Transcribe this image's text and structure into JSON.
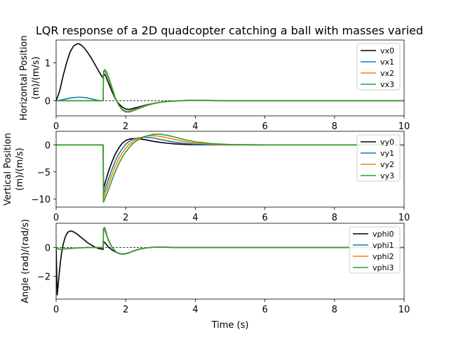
{
  "chart_data": [
    {
      "type": "line",
      "title": "LQR response of a 2D quadcopter catching a ball with masses varied",
      "xlabel": "",
      "ylabel": [
        "Horizontal Position",
        "(m)/(m/s)"
      ],
      "xlim": [
        0,
        10
      ],
      "ylim": [
        -0.4,
        1.6
      ],
      "xticks": [
        0,
        2,
        4,
        6,
        8,
        10
      ],
      "yticks": [
        0,
        1
      ],
      "zero_line": true,
      "legend_position": "upper right",
      "series": [
        {
          "name": "vx0",
          "color": "#000000",
          "x": [
            0,
            0.1,
            0.2,
            0.3,
            0.4,
            0.5,
            0.6,
            0.65,
            0.7,
            0.8,
            0.9,
            1.0,
            1.1,
            1.2,
            1.3,
            1.35,
            1.36,
            1.4,
            1.45,
            1.5,
            1.6,
            1.7,
            1.8,
            1.9,
            2.0,
            2.1,
            2.2,
            2.4,
            2.6,
            2.8,
            3.0,
            3.2,
            3.4,
            3.6,
            3.8,
            4.0,
            5.0,
            6.0,
            8.0,
            10.0
          ],
          "y": [
            0,
            0.25,
            0.65,
            1.0,
            1.28,
            1.44,
            1.5,
            1.5,
            1.48,
            1.4,
            1.28,
            1.14,
            0.98,
            0.82,
            0.66,
            0.6,
            0.66,
            0.7,
            0.6,
            0.48,
            0.25,
            0.05,
            -0.08,
            -0.17,
            -0.22,
            -0.23,
            -0.21,
            -0.16,
            -0.11,
            -0.07,
            -0.04,
            -0.02,
            -0.01,
            0.0,
            0.005,
            0.005,
            0,
            0,
            0,
            0
          ]
        },
        {
          "name": "vx1",
          "color": "#1f77b4",
          "x": [
            0,
            0.1,
            0.2,
            0.3,
            0.4,
            0.5,
            0.6,
            0.7,
            0.8,
            0.9,
            1.0,
            1.1,
            1.2,
            1.3,
            1.35,
            1.36,
            1.38,
            1.4,
            1.45,
            1.5,
            1.6,
            1.7,
            1.8,
            1.9,
            2.0,
            2.1,
            2.2,
            2.4,
            2.6,
            2.8,
            3.0,
            3.2,
            3.4,
            3.6,
            3.8,
            4.0,
            5.0,
            6.0,
            8.0,
            10.0
          ],
          "y": [
            0,
            0.01,
            0.03,
            0.05,
            0.07,
            0.08,
            0.09,
            0.09,
            0.085,
            0.07,
            0.05,
            0.03,
            0.01,
            0.0,
            0.0,
            0.72,
            0.76,
            0.78,
            0.72,
            0.6,
            0.32,
            0.06,
            -0.12,
            -0.23,
            -0.28,
            -0.28,
            -0.25,
            -0.18,
            -0.12,
            -0.07,
            -0.04,
            -0.02,
            -0.01,
            0.0,
            0.005,
            0.005,
            0,
            0,
            0,
            0
          ]
        },
        {
          "name": "vx2",
          "color": "#ff7f0e",
          "x": [
            0,
            1.35,
            1.36,
            1.38,
            1.4,
            1.45,
            1.5,
            1.6,
            1.7,
            1.8,
            1.9,
            2.0,
            2.1,
            2.2,
            2.4,
            2.6,
            2.8,
            3.0,
            3.2,
            3.4,
            3.6,
            3.8,
            4.0,
            5.0,
            6.0,
            8.0,
            10.0
          ],
          "y": [
            0,
            0,
            0.74,
            0.78,
            0.8,
            0.74,
            0.62,
            0.34,
            0.07,
            -0.12,
            -0.24,
            -0.29,
            -0.29,
            -0.26,
            -0.19,
            -0.12,
            -0.07,
            -0.04,
            -0.02,
            -0.01,
            0.0,
            0.005,
            0.005,
            0,
            0,
            0,
            0
          ]
        },
        {
          "name": "vx3",
          "color": "#2ca02c",
          "x": [
            0,
            1.35,
            1.36,
            1.38,
            1.4,
            1.45,
            1.5,
            1.6,
            1.7,
            1.8,
            1.9,
            2.0,
            2.1,
            2.2,
            2.4,
            2.6,
            2.8,
            3.0,
            3.2,
            3.4,
            3.6,
            3.8,
            4.0,
            5.0,
            6.0,
            8.0,
            10.0
          ],
          "y": [
            0,
            0,
            0.76,
            0.8,
            0.82,
            0.76,
            0.64,
            0.36,
            0.08,
            -0.11,
            -0.24,
            -0.3,
            -0.3,
            -0.27,
            -0.2,
            -0.13,
            -0.08,
            -0.04,
            -0.02,
            -0.01,
            0.0,
            0.005,
            0.005,
            0,
            0,
            0,
            0
          ]
        }
      ]
    },
    {
      "type": "line",
      "title": "",
      "xlabel": "",
      "ylabel": [
        "Vertical Position",
        "(m)/(m/s)"
      ],
      "xlim": [
        0,
        10
      ],
      "ylim": [
        -11.5,
        2.5
      ],
      "xticks": [
        0,
        2,
        4,
        6,
        8,
        10
      ],
      "yticks": [
        0,
        -5,
        -10
      ],
      "zero_line": false,
      "legend_position": "upper right",
      "series": [
        {
          "name": "vy0",
          "color": "#000000",
          "x": [
            0,
            1.35,
            1.36,
            1.4,
            1.5,
            1.6,
            1.7,
            1.8,
            1.9,
            2.0,
            2.1,
            2.2,
            2.3,
            2.4,
            2.6,
            2.8,
            3.0,
            3.2,
            3.4,
            3.6,
            3.8,
            4.0,
            4.5,
            5.0,
            6.0,
            8.0,
            10.0
          ],
          "y": [
            0,
            0,
            -8.2,
            -7.2,
            -5.0,
            -3.2,
            -1.7,
            -0.6,
            0.3,
            0.8,
            1.05,
            1.15,
            1.15,
            1.1,
            0.9,
            0.65,
            0.45,
            0.3,
            0.18,
            0.1,
            0.05,
            0.02,
            0.0,
            0.0,
            0,
            0,
            0
          ]
        },
        {
          "name": "vy1",
          "color": "#1f77b4",
          "x": [
            0,
            1.35,
            1.36,
            1.4,
            1.5,
            1.6,
            1.7,
            1.8,
            1.9,
            2.0,
            2.1,
            2.2,
            2.3,
            2.4,
            2.6,
            2.8,
            3.0,
            3.2,
            3.4,
            3.6,
            3.8,
            4.0,
            4.5,
            5.0,
            6.0,
            8.0,
            10.0
          ],
          "y": [
            0,
            0,
            -9.2,
            -8.4,
            -6.4,
            -4.6,
            -3.0,
            -1.7,
            -0.7,
            0.1,
            0.65,
            1.0,
            1.2,
            1.35,
            1.4,
            1.25,
            1.0,
            0.72,
            0.5,
            0.32,
            0.2,
            0.12,
            0.03,
            0.0,
            0,
            0,
            0
          ]
        },
        {
          "name": "vy2",
          "color": "#ff7f0e",
          "x": [
            0,
            1.35,
            1.36,
            1.4,
            1.5,
            1.6,
            1.7,
            1.8,
            1.9,
            2.0,
            2.1,
            2.2,
            2.3,
            2.4,
            2.6,
            2.8,
            3.0,
            3.2,
            3.4,
            3.6,
            3.8,
            4.0,
            4.5,
            5.0,
            6.0,
            8.0,
            10.0
          ],
          "y": [
            0,
            0,
            -9.9,
            -9.2,
            -7.4,
            -5.6,
            -4.0,
            -2.6,
            -1.5,
            -0.6,
            0.1,
            0.6,
            1.0,
            1.3,
            1.65,
            1.7,
            1.55,
            1.3,
            1.0,
            0.72,
            0.5,
            0.32,
            0.1,
            0.03,
            0,
            0,
            0
          ]
        },
        {
          "name": "vy3",
          "color": "#2ca02c",
          "x": [
            0,
            1.35,
            1.36,
            1.4,
            1.5,
            1.6,
            1.7,
            1.8,
            1.9,
            2.0,
            2.1,
            2.2,
            2.3,
            2.4,
            2.6,
            2.8,
            3.0,
            3.2,
            3.4,
            3.6,
            3.8,
            4.0,
            4.5,
            5.0,
            6.0,
            8.0,
            10.0
          ],
          "y": [
            0,
            0,
            -10.6,
            -10.0,
            -8.4,
            -6.6,
            -5.0,
            -3.5,
            -2.3,
            -1.3,
            -0.5,
            0.2,
            0.7,
            1.1,
            1.65,
            1.95,
            1.95,
            1.75,
            1.45,
            1.1,
            0.8,
            0.55,
            0.2,
            0.06,
            0,
            0,
            0
          ]
        }
      ]
    },
    {
      "type": "line",
      "title": "",
      "xlabel": "Time (s)",
      "ylabel": [
        "Angle (rad)/(rad/s)"
      ],
      "xlim": [
        0,
        10
      ],
      "ylim": [
        -3.6,
        1.7
      ],
      "xticks": [
        0,
        2,
        4,
        6,
        8,
        10
      ],
      "yticks": [
        0,
        -2
      ],
      "zero_line": true,
      "legend_position": "upper right",
      "series": [
        {
          "name": "vphi0",
          "color": "#000000",
          "x": [
            0,
            0.03,
            0.06,
            0.1,
            0.15,
            0.2,
            0.25,
            0.3,
            0.35,
            0.4,
            0.45,
            0.5,
            0.6,
            0.7,
            0.8,
            0.9,
            1.0,
            1.1,
            1.2,
            1.3,
            1.35,
            1.36,
            1.4,
            1.45,
            1.5,
            1.6,
            1.7,
            1.8,
            1.9,
            2.0,
            2.1,
            2.2,
            2.4,
            2.6,
            2.8,
            3.0,
            3.2,
            3.5,
            4.0,
            5.0,
            6.0,
            8.0,
            10.0
          ],
          "y": [
            0,
            -3.3,
            -2.6,
            -1.5,
            -0.5,
            0.2,
            0.65,
            0.95,
            1.1,
            1.15,
            1.15,
            1.1,
            0.95,
            0.75,
            0.55,
            0.35,
            0.2,
            0.05,
            -0.05,
            -0.1,
            -0.12,
            0.4,
            0.35,
            0.2,
            0.05,
            -0.15,
            -0.3,
            -0.4,
            -0.45,
            -0.42,
            -0.35,
            -0.25,
            -0.1,
            -0.02,
            0.02,
            0.03,
            0.02,
            0.0,
            0,
            0,
            0,
            0,
            0
          ]
        },
        {
          "name": "vphi1",
          "color": "#1f77b4",
          "x": [
            0,
            0.1,
            0.3,
            0.5,
            0.7,
            0.9,
            1.1,
            1.3,
            1.35,
            1.36,
            1.4,
            1.45,
            1.5,
            1.6,
            1.7,
            1.8,
            1.9,
            2.0,
            2.1,
            2.2,
            2.4,
            2.6,
            2.8,
            3.0,
            3.2,
            3.5,
            4.0,
            5.0,
            6.0,
            8.0,
            10.0
          ],
          "y": [
            0,
            -0.12,
            -0.08,
            -0.04,
            -0.02,
            0.0,
            0.0,
            0.0,
            0.0,
            1.2,
            1.25,
            0.85,
            0.5,
            0.05,
            -0.25,
            -0.4,
            -0.45,
            -0.42,
            -0.35,
            -0.25,
            -0.1,
            -0.02,
            0.02,
            0.03,
            0.02,
            0.0,
            0,
            0,
            0,
            0,
            0
          ]
        },
        {
          "name": "vphi2",
          "color": "#ff7f0e",
          "x": [
            0,
            0.1,
            0.3,
            0.5,
            0.7,
            0.9,
            1.1,
            1.3,
            1.35,
            1.36,
            1.4,
            1.45,
            1.5,
            1.6,
            1.7,
            1.8,
            1.9,
            2.0,
            2.1,
            2.2,
            2.4,
            2.6,
            2.8,
            3.0,
            3.2,
            3.5,
            4.0,
            5.0,
            6.0,
            8.0,
            10.0
          ],
          "y": [
            0,
            -0.12,
            -0.08,
            -0.04,
            -0.02,
            0.0,
            0.0,
            0.0,
            0.0,
            1.3,
            1.35,
            0.9,
            0.52,
            0.05,
            -0.26,
            -0.41,
            -0.46,
            -0.43,
            -0.36,
            -0.26,
            -0.1,
            -0.02,
            0.02,
            0.03,
            0.02,
            0.0,
            0,
            0,
            0,
            0,
            0
          ]
        },
        {
          "name": "vphi3",
          "color": "#2ca02c",
          "x": [
            0,
            0.1,
            0.3,
            0.5,
            0.7,
            0.9,
            1.1,
            1.3,
            1.35,
            1.36,
            1.4,
            1.45,
            1.5,
            1.6,
            1.7,
            1.8,
            1.9,
            2.0,
            2.1,
            2.2,
            2.4,
            2.6,
            2.8,
            3.0,
            3.2,
            3.5,
            4.0,
            5.0,
            6.0,
            8.0,
            10.0
          ],
          "y": [
            0,
            -0.12,
            -0.08,
            -0.04,
            -0.02,
            0.0,
            0.0,
            0.0,
            0.0,
            1.35,
            1.4,
            0.95,
            0.55,
            0.05,
            -0.27,
            -0.42,
            -0.47,
            -0.44,
            -0.37,
            -0.27,
            -0.1,
            -0.02,
            0.02,
            0.03,
            0.02,
            0.0,
            0,
            0,
            0,
            0,
            0
          ]
        }
      ]
    }
  ]
}
